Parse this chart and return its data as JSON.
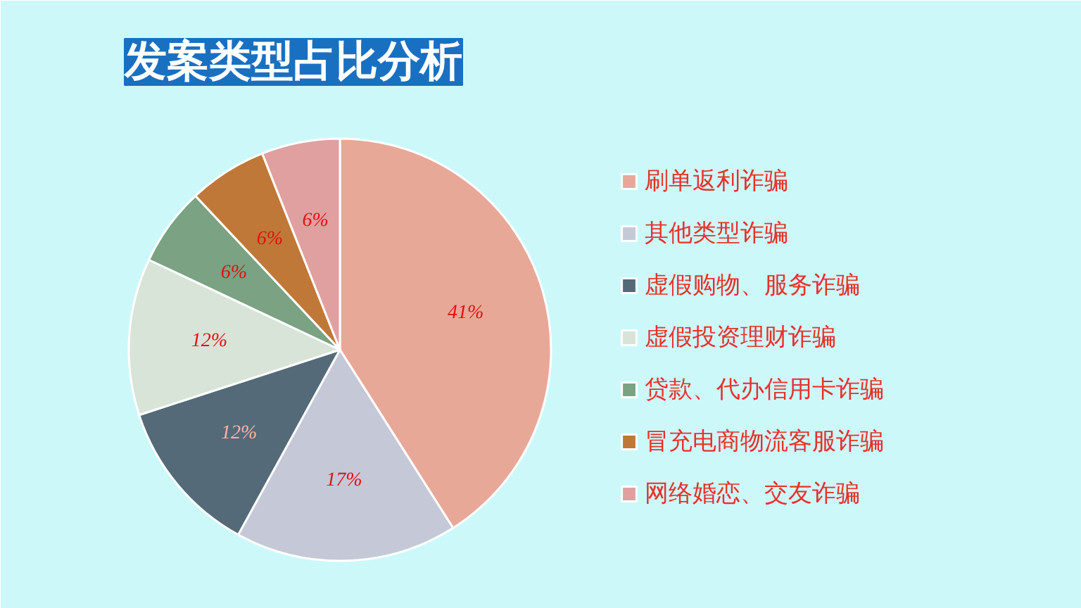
{
  "chart_data": {
    "type": "pie",
    "title": "发案类型占比分析",
    "categories": [
      "刷单返利诈骗",
      "其他类型诈骗",
      "虚假购物、服务诈骗",
      "虚假投资理财诈骗",
      "贷款、代办信用卡诈骗",
      "冒充电商物流客服诈骗",
      "网络婚恋、交友诈骗"
    ],
    "values": [
      41,
      17,
      12,
      12,
      6,
      6,
      6
    ],
    "colors": [
      "#e8a898",
      "#c5c8d6",
      "#546a78",
      "#d8e4d8",
      "#7aa283",
      "#c07838",
      "#e0a0a0"
    ],
    "value_labels": [
      "41%",
      "17%",
      "12%",
      "12%",
      "6%",
      "6%",
      "6%"
    ],
    "legend": "right"
  }
}
